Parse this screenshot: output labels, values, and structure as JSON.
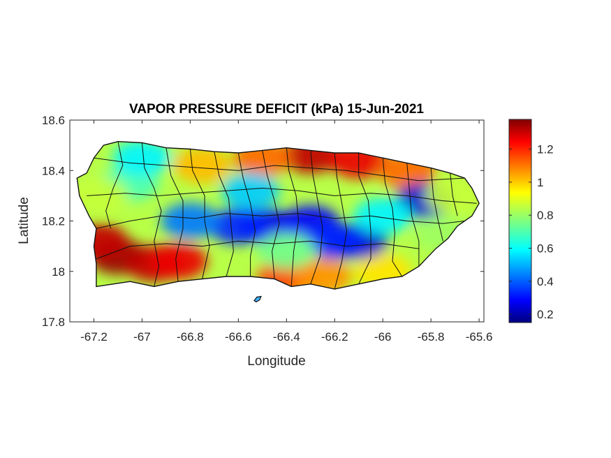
{
  "chart_data": {
    "type": "heatmap",
    "title": "VAPOR PRESSURE DEFICIT (kPa) 15-Jun-2021",
    "xlabel": "Longitude",
    "ylabel": "Latitude",
    "xlim": [
      -67.3,
      -65.58
    ],
    "ylim": [
      17.8,
      18.6
    ],
    "x_ticks": [
      -67.2,
      -67,
      -66.8,
      -66.6,
      -66.4,
      -66.2,
      -66,
      -65.8,
      -65.6
    ],
    "x_tick_labels": [
      "-67.2",
      "-67",
      "-66.8",
      "-66.6",
      "-66.4",
      "-66.2",
      "-66",
      "-65.8",
      "-65.6"
    ],
    "y_ticks": [
      17.8,
      18,
      18.2,
      18.4,
      18.6
    ],
    "y_tick_labels": [
      "17.8",
      "18",
      "18.2",
      "18.4",
      "18.6"
    ],
    "colorbar": {
      "colormap": "jet",
      "range": [
        0.15,
        1.38
      ],
      "ticks": [
        0.2,
        0.4,
        0.6,
        0.8,
        1,
        1.2
      ],
      "tick_labels": [
        "0.2",
        "0.4",
        "0.6",
        "0.8",
        "1",
        "1.2"
      ]
    },
    "grid": false,
    "field_features": [
      {
        "lon": -67.1,
        "lat": 18.06,
        "value": 1.35
      },
      {
        "lon": -66.95,
        "lat": 18.03,
        "value": 1.3
      },
      {
        "lon": -66.85,
        "lat": 18.04,
        "value": 1.25
      },
      {
        "lon": -67.18,
        "lat": 18.12,
        "value": 1.3
      },
      {
        "lon": -66.4,
        "lat": 17.98,
        "value": 1.15
      },
      {
        "lon": -66.25,
        "lat": 17.98,
        "value": 1.05
      },
      {
        "lon": -66.0,
        "lat": 18.0,
        "value": 0.95
      },
      {
        "lon": -66.3,
        "lat": 18.46,
        "value": 1.3
      },
      {
        "lon": -66.1,
        "lat": 18.44,
        "value": 1.25
      },
      {
        "lon": -66.5,
        "lat": 18.45,
        "value": 1.1
      },
      {
        "lon": -65.9,
        "lat": 18.4,
        "value": 1.1
      },
      {
        "lon": -66.75,
        "lat": 18.42,
        "value": 1.0
      },
      {
        "lon": -66.48,
        "lat": 18.18,
        "value": 0.28
      },
      {
        "lon": -66.3,
        "lat": 18.19,
        "value": 0.3
      },
      {
        "lon": -66.6,
        "lat": 18.18,
        "value": 0.35
      },
      {
        "lon": -66.1,
        "lat": 18.12,
        "value": 0.25
      },
      {
        "lon": -66.2,
        "lat": 18.12,
        "value": 0.35
      },
      {
        "lon": -65.83,
        "lat": 18.28,
        "value": 0.25
      },
      {
        "lon": -66.8,
        "lat": 18.2,
        "value": 0.45
      },
      {
        "lon": -67.05,
        "lat": 18.35,
        "value": 0.7
      },
      {
        "lon": -67.18,
        "lat": 18.3,
        "value": 0.85
      },
      {
        "lon": -67.0,
        "lat": 18.45,
        "value": 0.6
      },
      {
        "lon": -65.7,
        "lat": 18.3,
        "value": 0.85
      },
      {
        "lon": -66.0,
        "lat": 18.22,
        "value": 0.6
      },
      {
        "lon": -66.55,
        "lat": 18.32,
        "value": 0.55
      },
      {
        "lon": -66.4,
        "lat": 18.08,
        "value": 0.75
      },
      {
        "lon": -65.75,
        "lat": 18.15,
        "value": 0.8
      }
    ]
  }
}
